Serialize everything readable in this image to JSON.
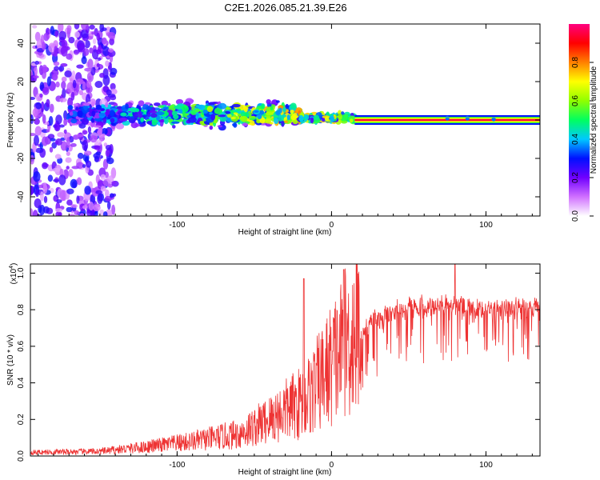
{
  "title": "C2E1.2026.085.21.39.E26",
  "chart_data": [
    {
      "type": "heatmap",
      "xlabel": "Height of straight line (km)",
      "ylabel": "Frequency (Hz)",
      "xlim": [
        -195,
        135
      ],
      "ylim": [
        -50,
        50
      ],
      "x_ticks": [
        -100,
        0,
        100
      ],
      "x_tick_labels": [
        "-100",
        "0",
        "100"
      ],
      "y_ticks": [
        -40,
        -20,
        0,
        20,
        40
      ],
      "y_tick_labels": [
        "-40",
        "-20",
        "0",
        "20",
        "40"
      ],
      "colorbar": {
        "label": "Normalized spectral amplitude",
        "range": [
          0,
          1
        ],
        "ticks": [
          0.0,
          0.2,
          0.4,
          0.6,
          0.8
        ],
        "tick_labels": [
          "0.0",
          "0.2",
          "0.4",
          "0.6",
          "0.8"
        ],
        "colors": [
          "#ffffff",
          "#d070ff",
          "#7000ff",
          "#0010ff",
          "#00c8ff",
          "#00ff60",
          "#90ff00",
          "#ffff00",
          "#ff8000",
          "#ff0000",
          "#ff0080"
        ]
      },
      "bands": [
        {
          "x_from": -195,
          "x_to": -140,
          "f_center": 0,
          "f_halfwidth": 50,
          "amplitude": 0.15
        },
        {
          "x_from": -170,
          "x_to": -20,
          "f_center": 3,
          "f_halfwidth": 8,
          "amplitude": 0.35
        },
        {
          "x_from": -20,
          "x_to": 15,
          "f_center": 1,
          "f_halfwidth": 3,
          "amplitude": 0.6
        },
        {
          "x_from": 15,
          "x_to": 135,
          "f_center": 0,
          "f_halfwidth": 0.8,
          "amplitude": 0.95
        }
      ]
    },
    {
      "type": "line",
      "xlabel": "Height of straight line (km)",
      "ylabel": "SNR (10 * v/v)",
      "y_multiplier": "(x10",
      "y_multiplier_exp": "4",
      "y_multiplier_close": ")",
      "xlim": [
        -195,
        135
      ],
      "ylim": [
        0.0,
        1.05
      ],
      "x_ticks": [
        -100,
        0,
        100
      ],
      "x_tick_labels": [
        "-100",
        "0",
        "100"
      ],
      "y_ticks": [
        0.0,
        0.2,
        0.4,
        0.6,
        0.8,
        1.0
      ],
      "y_tick_labels": [
        "0.0",
        "0.2",
        "0.4",
        "0.6",
        "0.8",
        "1.0"
      ],
      "series": [
        {
          "name": "SNR",
          "color": "#ee3333",
          "envelope": [
            {
              "x": -195,
              "y": 0.02
            },
            {
              "x": -150,
              "y": 0.025
            },
            {
              "x": -120,
              "y": 0.05
            },
            {
              "x": -90,
              "y": 0.08
            },
            {
              "x": -60,
              "y": 0.12
            },
            {
              "x": -40,
              "y": 0.2
            },
            {
              "x": -30,
              "y": 0.25
            },
            {
              "x": -18,
              "y": 0.3
            },
            {
              "x": -10,
              "y": 0.38
            },
            {
              "x": 0,
              "y": 0.5
            },
            {
              "x": 10,
              "y": 0.62
            },
            {
              "x": 25,
              "y": 0.78
            },
            {
              "x": 50,
              "y": 0.86
            },
            {
              "x": 80,
              "y": 0.87
            },
            {
              "x": 100,
              "y": 0.85
            },
            {
              "x": 135,
              "y": 0.86
            }
          ],
          "peaks": [
            {
              "x": -18,
              "y": 0.97
            },
            {
              "x": 8,
              "y": 1.02
            },
            {
              "x": 80,
              "y": 1.05
            }
          ]
        }
      ]
    }
  ]
}
